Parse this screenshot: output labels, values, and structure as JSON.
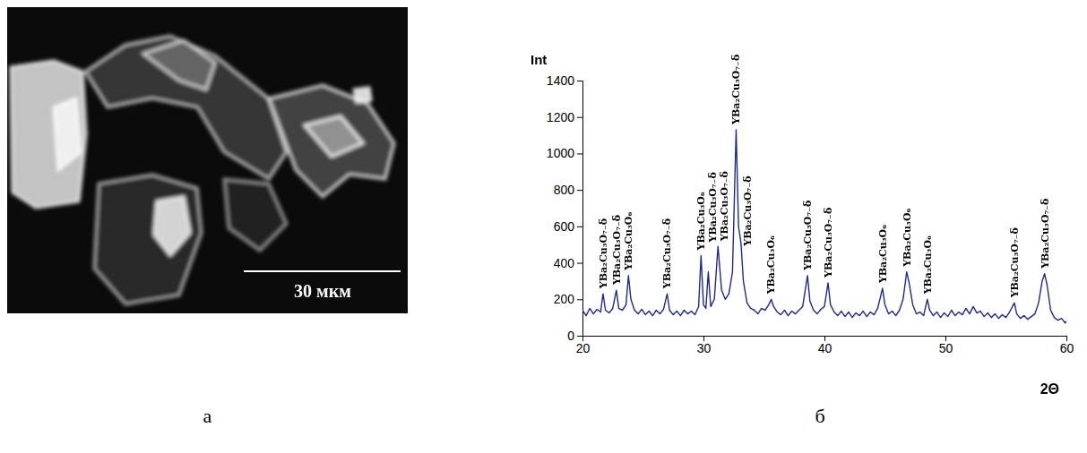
{
  "chart_data": {
    "type": "line",
    "y_label": "Int",
    "x_label": "2Θ",
    "color": "#1f2a8a",
    "grid": false,
    "xlim": [
      20,
      60
    ],
    "xticks": [
      20,
      30,
      40,
      50,
      60
    ],
    "ylim": [
      0,
      1400
    ],
    "yticks": [
      0,
      200,
      400,
      600,
      800,
      1000,
      1200,
      1400
    ],
    "x": [
      20.0,
      20.3,
      20.6,
      20.9,
      21.2,
      21.5,
      21.7,
      21.9,
      22.2,
      22.5,
      22.8,
      23.0,
      23.3,
      23.6,
      23.8,
      24.0,
      24.3,
      24.6,
      24.9,
      25.2,
      25.5,
      25.8,
      26.1,
      26.4,
      26.7,
      27.0,
      27.2,
      27.5,
      27.8,
      28.1,
      28.4,
      28.7,
      29.0,
      29.3,
      29.6,
      29.8,
      30.0,
      30.2,
      30.4,
      30.6,
      30.9,
      31.2,
      31.5,
      31.8,
      32.1,
      32.4,
      32.7,
      32.9,
      33.1,
      33.3,
      33.6,
      33.9,
      34.2,
      34.5,
      34.8,
      35.1,
      35.4,
      35.6,
      35.8,
      36.1,
      36.4,
      36.7,
      37.0,
      37.3,
      37.6,
      37.9,
      38.2,
      38.6,
      38.8,
      39.1,
      39.4,
      39.7,
      40.0,
      40.3,
      40.5,
      40.8,
      41.1,
      41.4,
      41.7,
      42.0,
      42.3,
      42.6,
      42.9,
      43.2,
      43.5,
      43.8,
      44.1,
      44.4,
      44.8,
      45.0,
      45.3,
      45.6,
      45.9,
      46.2,
      46.5,
      46.8,
      47.0,
      47.3,
      47.6,
      47.9,
      48.2,
      48.5,
      48.7,
      49.0,
      49.3,
      49.6,
      49.9,
      50.2,
      50.5,
      50.8,
      51.1,
      51.4,
      51.7,
      52.0,
      52.3,
      52.6,
      52.9,
      53.2,
      53.5,
      53.8,
      54.1,
      54.4,
      54.7,
      55.0,
      55.3,
      55.7,
      55.9,
      56.2,
      56.5,
      56.8,
      57.1,
      57.4,
      57.7,
      58.0,
      58.2,
      58.4,
      58.7,
      59.0,
      59.3,
      59.6,
      59.9,
      60.0
    ],
    "values": [
      140,
      110,
      150,
      120,
      145,
      130,
      230,
      140,
      125,
      150,
      250,
      150,
      140,
      170,
      330,
      200,
      140,
      120,
      145,
      115,
      135,
      110,
      140,
      120,
      145,
      230,
      140,
      115,
      135,
      110,
      140,
      120,
      135,
      115,
      160,
      440,
      170,
      150,
      350,
      160,
      200,
      490,
      250,
      200,
      230,
      350,
      1130,
      600,
      510,
      300,
      180,
      150,
      140,
      120,
      150,
      140,
      170,
      200,
      160,
      130,
      115,
      140,
      110,
      135,
      120,
      140,
      160,
      330,
      190,
      140,
      120,
      145,
      160,
      290,
      170,
      130,
      110,
      135,
      105,
      130,
      100,
      125,
      110,
      135,
      105,
      130,
      115,
      150,
      260,
      170,
      120,
      135,
      110,
      140,
      200,
      350,
      290,
      170,
      120,
      130,
      110,
      200,
      140,
      110,
      130,
      100,
      125,
      105,
      140,
      110,
      130,
      115,
      150,
      120,
      160,
      125,
      135,
      105,
      125,
      100,
      120,
      95,
      115,
      100,
      130,
      180,
      120,
      95,
      110,
      90,
      105,
      120,
      180,
      300,
      340,
      280,
      140,
      100,
      85,
      95,
      70,
      80
    ],
    "annotations": [
      {
        "x": 21.7,
        "text": "YBa₂Cu₃O₇₋δ"
      },
      {
        "x": 22.8,
        "text": "YBa₂Cu₃O₇₋δ"
      },
      {
        "x": 23.8,
        "text": "YBa₂Cu₃O₆"
      },
      {
        "x": 27.0,
        "text": "YBa₂Cu₃O₇₋δ"
      },
      {
        "x": 29.8,
        "text": "YBa₂Cu₃O₆"
      },
      {
        "x": 30.4,
        "text": "YBa₂Cu₃O₇₋δ"
      },
      {
        "x": 31.2,
        "text": "YBa₂Cu₃O₇₋δ"
      },
      {
        "x": 32.7,
        "text": "YBa₂Cu₃O₇₋δ"
      },
      {
        "x": 33.2,
        "text": "YBa₂Cu₃O₇₋δ"
      },
      {
        "x": 35.6,
        "text": "YBa₂Cu₃O₆"
      },
      {
        "x": 38.6,
        "text": "YBa₂Cu₃O₇₋δ"
      },
      {
        "x": 40.3,
        "text": "YBa₂Cu₃O₇₋δ"
      },
      {
        "x": 44.8,
        "text": "YBa₂Cu₃O₆"
      },
      {
        "x": 46.8,
        "text": "YBa₂Cu₃O₆"
      },
      {
        "x": 48.5,
        "text": "YBa₂Cu₃O₆"
      },
      {
        "x": 55.7,
        "text": "YBa₂Cu₃O₇₋δ"
      },
      {
        "x": 58.2,
        "text": "YBa₂Cu₃O₇₋δ"
      }
    ]
  },
  "panels": [
    {
      "label": "а",
      "scale_bar": "30 мкм"
    },
    {
      "label": "б"
    }
  ]
}
